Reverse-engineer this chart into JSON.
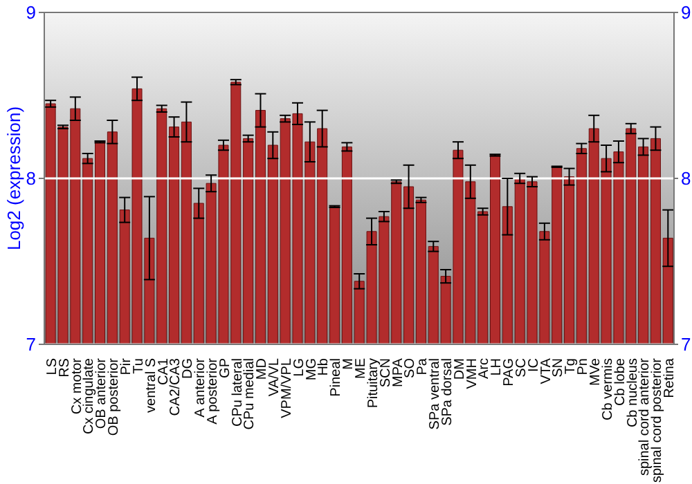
{
  "chart_data": {
    "type": "bar",
    "ylabel": "Log2 (expression)",
    "categories": [
      "LS",
      "RS",
      "Cx motor",
      "Cx cingulate",
      "OB anterior",
      "OB posterior",
      "Pir",
      "Tu",
      "ventral S",
      "CA1",
      "CA2/CA3",
      "DG",
      "A anterior",
      "A posterior",
      "GP",
      "CPu lateral",
      "CPu medial",
      "MD",
      "VA/VL",
      "VPM/VPL",
      "LG",
      "MG",
      "Hb",
      "Pineal",
      "M",
      "ME",
      "Pituitary",
      "SCN",
      "MPA",
      "SO",
      "Pa",
      "SPa ventral",
      "SPa dorsal",
      "DM",
      "VMH",
      "Arc",
      "LH",
      "PAG",
      "SC",
      "IC",
      "VTA",
      "SN",
      "Tg",
      "Pn",
      "MVe",
      "Cb vermis",
      "Cb lobe",
      "Cb nucleus",
      "spinal cord anterior",
      "spinal cord posterior",
      "Retina"
    ],
    "values": [
      8.45,
      8.31,
      8.42,
      8.12,
      8.22,
      8.28,
      7.81,
      8.54,
      7.64,
      8.42,
      8.31,
      8.34,
      7.85,
      7.97,
      8.2,
      8.58,
      8.24,
      8.41,
      8.2,
      8.36,
      8.39,
      8.22,
      8.3,
      7.83,
      8.19,
      7.38,
      7.68,
      7.77,
      7.98,
      7.95,
      7.87,
      7.59,
      7.41,
      8.17,
      7.98,
      7.8,
      8.14,
      7.83,
      8.0,
      7.98,
      7.68,
      8.07,
      8.01,
      8.18,
      8.3,
      8.12,
      8.16,
      8.3,
      8.19,
      8.24,
      7.64
    ],
    "errors": [
      0.02,
      0.01,
      0.07,
      0.03,
      0.005,
      0.07,
      0.075,
      0.07,
      0.25,
      0.02,
      0.06,
      0.12,
      0.09,
      0.05,
      0.03,
      0.015,
      0.02,
      0.1,
      0.08,
      0.02,
      0.065,
      0.12,
      0.11,
      0.005,
      0.025,
      0.045,
      0.08,
      0.03,
      0.01,
      0.13,
      0.015,
      0.03,
      0.04,
      0.05,
      0.1,
      0.02,
      0.005,
      0.17,
      0.03,
      0.03,
      0.05,
      0.003,
      0.05,
      0.03,
      0.08,
      0.08,
      0.065,
      0.03,
      0.05,
      0.07,
      0.17
    ],
    "color": "#b22c2c",
    "ylim": [
      7,
      9
    ],
    "yticks": [
      7,
      8,
      9
    ],
    "y2lim": [
      7,
      9
    ],
    "y2ticks": [
      7,
      8,
      9
    ],
    "grid": "y"
  }
}
